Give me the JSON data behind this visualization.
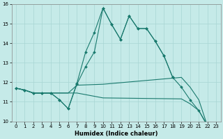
{
  "xlabel": "Humidex (Indice chaleur)",
  "bg_color": "#c5eae8",
  "grid_color": "#a8d5d3",
  "line_color": "#1a7a6e",
  "xlim": [
    -0.5,
    23.5
  ],
  "ylim": [
    10,
    16
  ],
  "yticks": [
    10,
    11,
    12,
    13,
    14,
    15,
    16
  ],
  "xticks": [
    0,
    1,
    2,
    3,
    4,
    5,
    6,
    7,
    8,
    9,
    10,
    11,
    12,
    13,
    14,
    15,
    16,
    17,
    18,
    19,
    20,
    21,
    22,
    23
  ],
  "line1_x": [
    0,
    1,
    2,
    3,
    4,
    5,
    6,
    7,
    8,
    9,
    10,
    11,
    12,
    13,
    14,
    15,
    16,
    17,
    18,
    19,
    20,
    21,
    22
  ],
  "line1_y": [
    11.7,
    11.6,
    11.45,
    11.45,
    11.45,
    11.1,
    10.65,
    11.95,
    13.55,
    14.55,
    15.8,
    14.95,
    14.2,
    15.4,
    14.75,
    14.75,
    14.1,
    13.35,
    12.25,
    11.75,
    11.1,
    10.55,
    9.8
  ],
  "line2_x": [
    0,
    1,
    2,
    3,
    4,
    5,
    6,
    7,
    8,
    9,
    10,
    11,
    12,
    13,
    14,
    15,
    16,
    17,
    18
  ],
  "line2_y": [
    11.7,
    11.6,
    11.45,
    11.45,
    11.45,
    11.1,
    10.65,
    11.9,
    12.8,
    13.55,
    15.8,
    14.95,
    14.2,
    15.4,
    14.75,
    14.75,
    14.1,
    13.35,
    12.25
  ],
  "line3_x": [
    0,
    1,
    2,
    3,
    4,
    5,
    6,
    7,
    10,
    19,
    20,
    21,
    22
  ],
  "line3_y": [
    11.7,
    11.6,
    11.45,
    11.45,
    11.45,
    11.45,
    11.45,
    11.85,
    11.9,
    12.25,
    11.75,
    11.1,
    9.75
  ],
  "line4_x": [
    0,
    1,
    2,
    3,
    4,
    5,
    6,
    7,
    10,
    19,
    20,
    21,
    22
  ],
  "line4_y": [
    11.7,
    11.6,
    11.45,
    11.45,
    11.45,
    11.45,
    11.45,
    11.45,
    11.2,
    11.15,
    10.9,
    10.55,
    9.75
  ]
}
